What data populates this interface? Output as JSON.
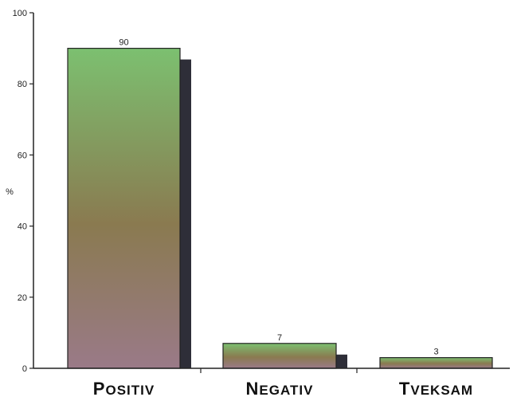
{
  "chart_data": {
    "type": "bar",
    "categories": [
      "Positiv",
      "Negativ",
      "Tveksam"
    ],
    "values": [
      90,
      7,
      3
    ],
    "ylabel": "%",
    "ylim": [
      0,
      100
    ],
    "yticks": [
      0,
      20,
      40,
      60,
      80,
      100
    ],
    "data_labels": [
      "90",
      "7",
      "3"
    ],
    "grid": false,
    "legend": "none"
  },
  "colors": {
    "bar_top": "#7cc070",
    "bar_mid": "#8a7a50",
    "bar_bottom": "#9a7a88",
    "bar_shadow": "#2e2e38",
    "axis": "#222222"
  }
}
